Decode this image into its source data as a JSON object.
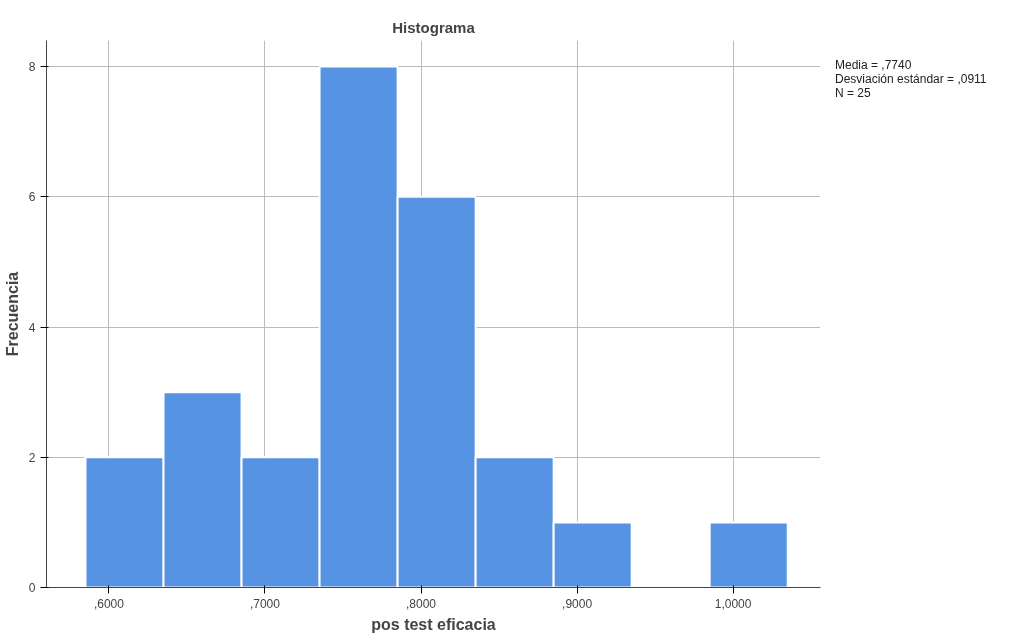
{
  "chart_data": {
    "type": "histogram",
    "title": "Histograma",
    "xlabel": "pos test eficacia",
    "ylabel": "Frecuencia",
    "bins": [
      5850,
      6350,
      6850,
      7350,
      7850,
      8350,
      8850,
      9350,
      9850,
      10350
    ],
    "values": [
      2,
      3,
      2,
      8,
      6,
      2,
      1,
      0,
      1
    ],
    "color": "#5694e3",
    "xlim": [
      5600,
      10560
    ],
    "ylim": [
      0,
      8.4
    ],
    "xticks": [
      {
        "value": 6000,
        "label": ",6000"
      },
      {
        "value": 7000,
        "label": ",7000"
      },
      {
        "value": 8000,
        "label": ",8000"
      },
      {
        "value": 9000,
        "label": ",9000"
      },
      {
        "value": 10000,
        "label": "1,0000"
      }
    ],
    "yticks": [
      0,
      2,
      4,
      6,
      8
    ],
    "grid": true,
    "annotations": [
      "Media = ,7740",
      "Desviación estándar = ,0911",
      "N = 25"
    ]
  }
}
